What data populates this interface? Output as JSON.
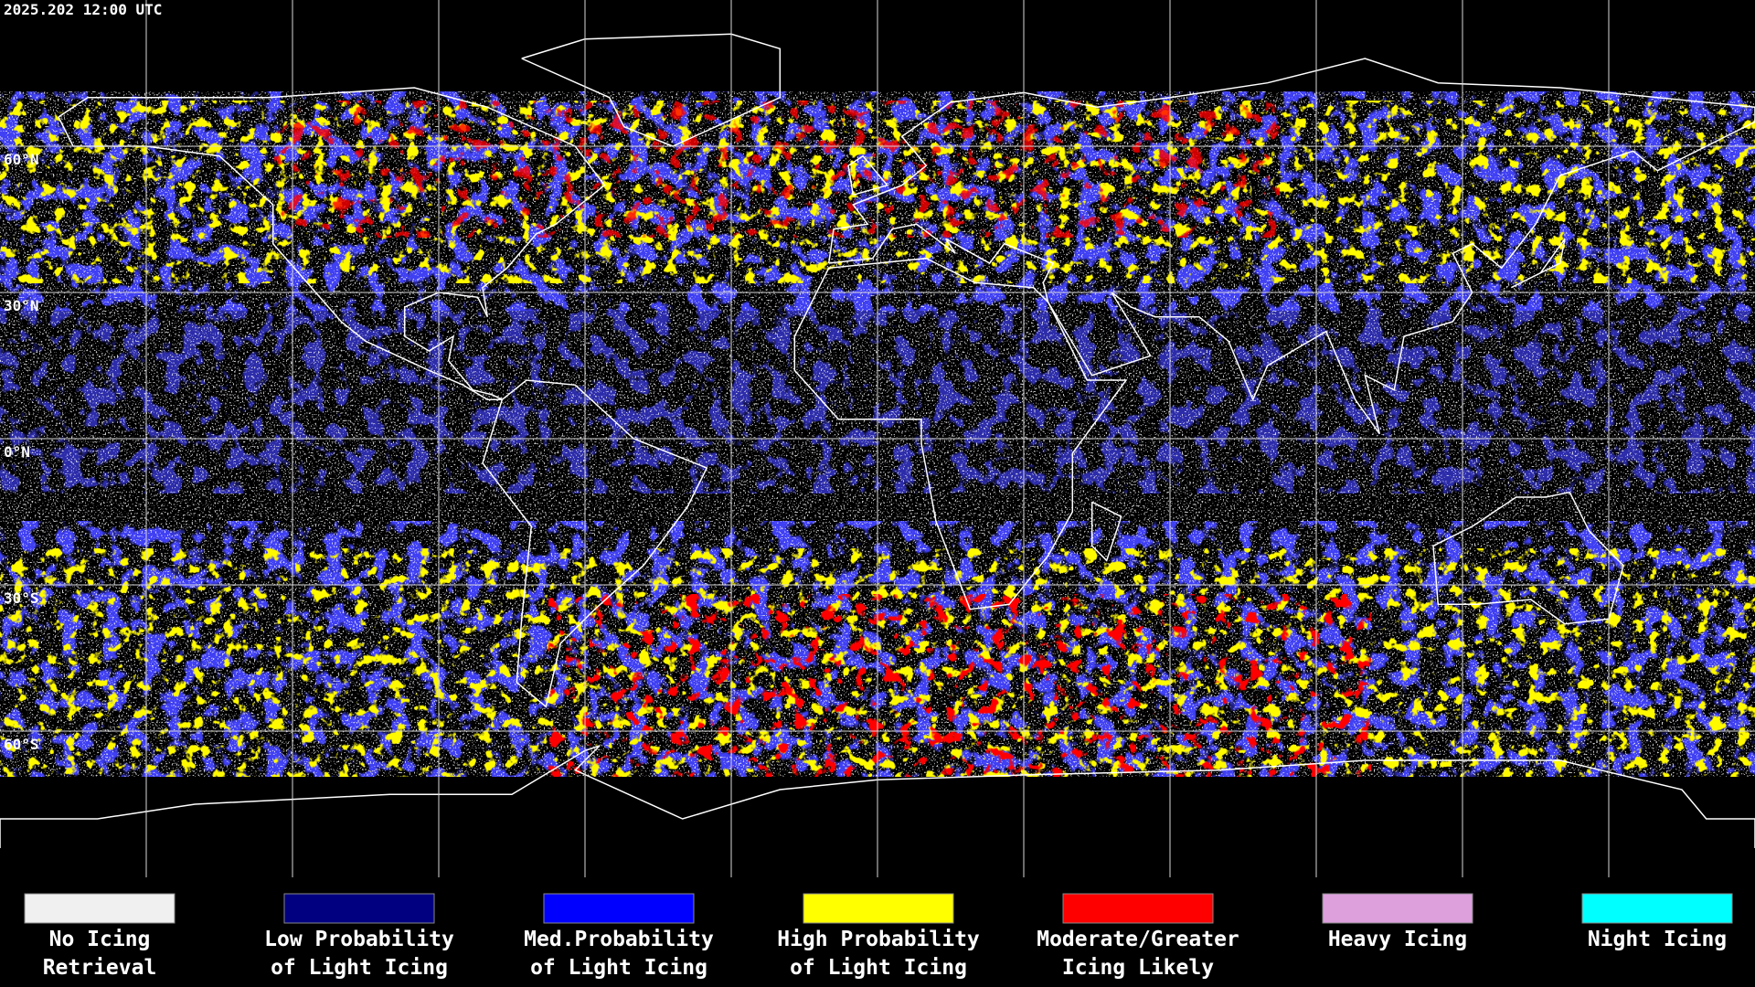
{
  "header": {
    "timestamp": "2025.202 12:00 UTC"
  },
  "grid": {
    "lat_labels": [
      "60°N",
      "30°N",
      "0°N",
      "30°S",
      "60°S"
    ]
  },
  "legend": {
    "items": [
      {
        "color": "#f0f0f0",
        "label_lines": [
          "No Icing",
          "Retrieval"
        ]
      },
      {
        "color": "#000080",
        "label_lines": [
          "Low Probability",
          "of Light Icing"
        ]
      },
      {
        "color": "#0000ff",
        "label_lines": [
          "Med.Probability",
          "of Light Icing"
        ]
      },
      {
        "color": "#ffff00",
        "label_lines": [
          "High Probability",
          "of Light Icing"
        ]
      },
      {
        "color": "#ff0000",
        "label_lines": [
          "Moderate/Greater",
          "Icing Likely"
        ]
      },
      {
        "color": "#dda0dd",
        "label_lines": [
          "Heavy Icing"
        ]
      },
      {
        "color": "#00ffff",
        "label_lines": [
          "Night Icing"
        ]
      }
    ]
  }
}
